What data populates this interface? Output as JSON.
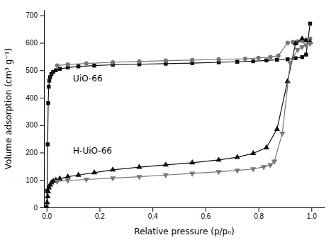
{
  "chart_data": {
    "type": "line",
    "xlabel": "Relative pressure (p/p₀)",
    "ylabel": "Volume adsorption (cm³ g⁻¹)",
    "xlim": [
      -0.01,
      1.05
    ],
    "ylim": [
      0,
      720
    ],
    "xticks": [
      {
        "value": 0.0,
        "label": "0.0"
      },
      0.2,
      0.4,
      0.6,
      0.8,
      {
        "value": 1.0,
        "label": "1.0"
      }
    ],
    "yticks": [
      0,
      100,
      200,
      300,
      400,
      500,
      600,
      700
    ],
    "series": [
      {
        "color": "#111111",
        "marker": "square",
        "x": [
          0.0,
          0.002,
          0.004,
          0.006,
          0.008,
          0.01,
          0.013,
          0.018,
          0.025,
          0.035,
          0.05,
          0.08,
          0.12,
          0.18,
          0.25,
          0.35,
          0.45,
          0.55,
          0.65,
          0.72,
          0.78,
          0.83,
          0.87,
          0.91,
          0.94,
          0.965,
          0.98,
          0.995
        ],
        "values": [
          0,
          60,
          230,
          380,
          440,
          462,
          475,
          486,
          494,
          500,
          505,
          510,
          514,
          517,
          520,
          522,
          524,
          526,
          529,
          531,
          533,
          536,
          538,
          540,
          544,
          548,
          557,
          670
        ]
      },
      {
        "color": "#777777",
        "marker": "circle",
        "x": [
          0.995,
          0.98,
          0.965,
          0.948,
          0.93,
          0.91,
          0.875,
          0.845,
          0.8,
          0.75,
          0.65,
          0.55,
          0.45,
          0.35,
          0.25,
          0.15,
          0.08,
          0.04
        ],
        "values": [
          615,
          610,
          607,
          605,
          603,
          600,
          553,
          548,
          545,
          542,
          540,
          537,
          535,
          532,
          529,
          525,
          521,
          517
        ]
      },
      {
        "color": "#111111",
        "marker": "triangle-up",
        "x": [
          0.0,
          0.002,
          0.004,
          0.006,
          0.009,
          0.013,
          0.018,
          0.025,
          0.035,
          0.05,
          0.08,
          0.12,
          0.18,
          0.25,
          0.35,
          0.45,
          0.55,
          0.65,
          0.72,
          0.78,
          0.83,
          0.87,
          0.91,
          0.94,
          0.965,
          0.98,
          0.995
        ],
        "values": [
          0,
          18,
          40,
          58,
          72,
          82,
          90,
          96,
          100,
          105,
          112,
          118,
          127,
          137,
          147,
          155,
          163,
          173,
          183,
          197,
          218,
          285,
          460,
          597,
          615,
          608,
          603
        ]
      },
      {
        "color": "#777777",
        "marker": "triangle-down",
        "x": [
          0.995,
          0.98,
          0.965,
          0.948,
          0.92,
          0.89,
          0.86,
          0.845,
          0.82,
          0.78,
          0.72,
          0.65,
          0.55,
          0.45,
          0.35,
          0.25,
          0.15,
          0.08,
          0.04
        ],
        "values": [
          597,
          592,
          585,
          575,
          527,
          270,
          168,
          155,
          148,
          140,
          135,
          130,
          124,
          118,
          112,
          107,
          102,
          98,
          95
        ]
      }
    ],
    "annotations": [
      {
        "text": "UiO-66",
        "x": 0.1,
        "y": 460
      },
      {
        "text": "H-UiO-66",
        "x": 0.1,
        "y": 195
      }
    ]
  }
}
